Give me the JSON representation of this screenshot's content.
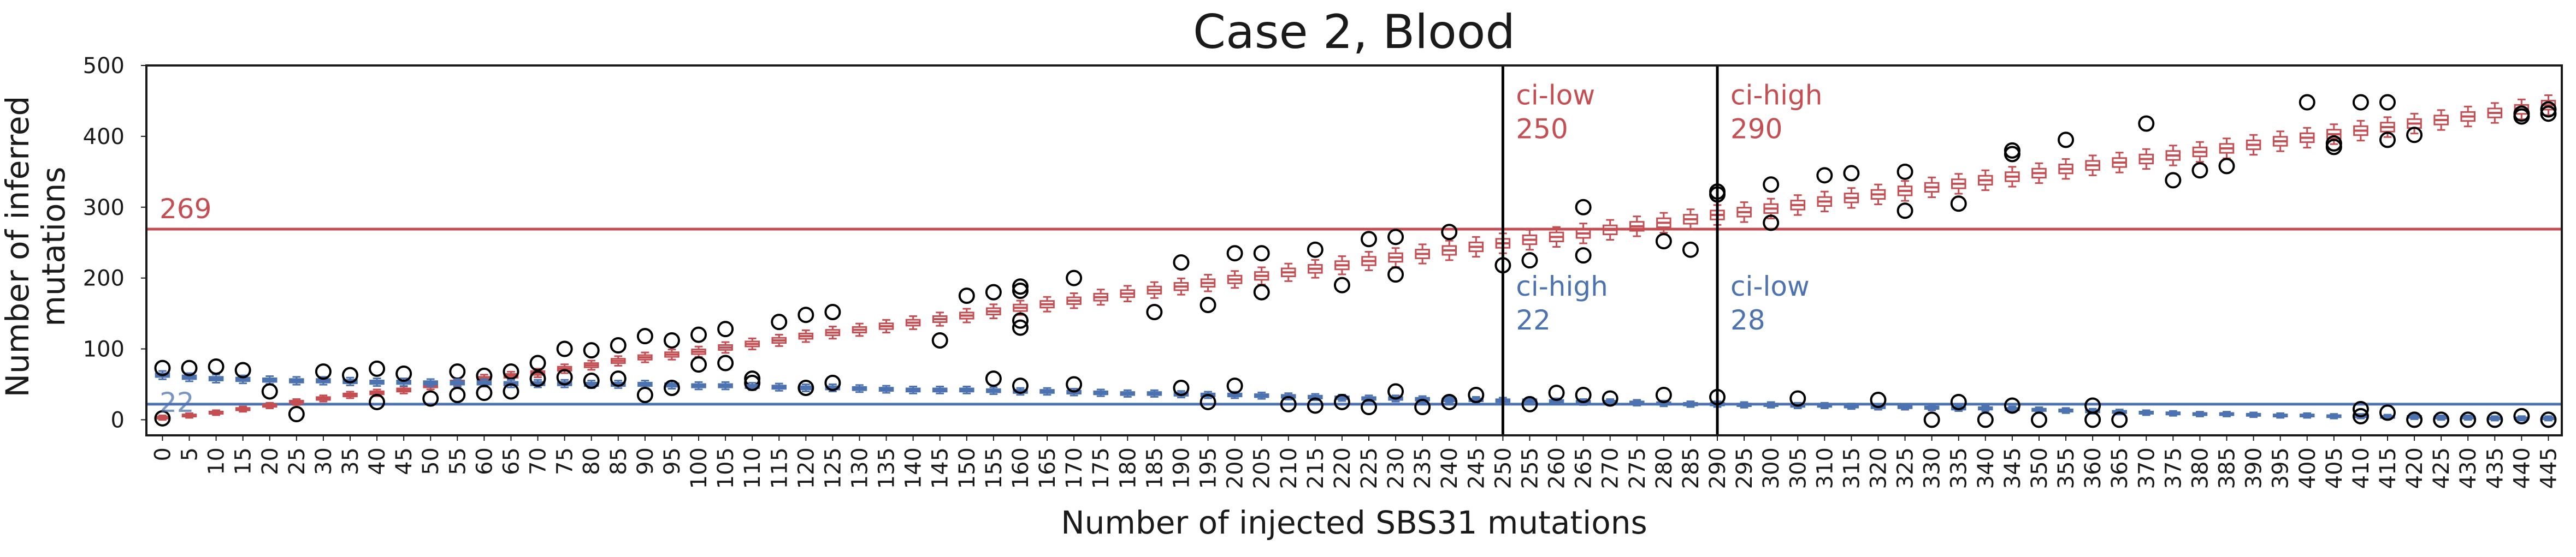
{
  "chart_data": {
    "type": "box",
    "title": "Case 2, Blood",
    "xlabel": "Number of injected SBS31 mutations",
    "ylabel": "Number of inferred mutations",
    "ylim": [
      -22,
      500
    ],
    "yticks": [
      0,
      100,
      200,
      300,
      400,
      500
    ],
    "x": [
      0,
      5,
      10,
      15,
      20,
      25,
      30,
      35,
      40,
      45,
      50,
      55,
      60,
      65,
      70,
      75,
      80,
      85,
      90,
      95,
      100,
      105,
      110,
      115,
      120,
      125,
      130,
      135,
      140,
      145,
      150,
      155,
      160,
      165,
      170,
      175,
      180,
      185,
      190,
      195,
      200,
      205,
      210,
      215,
      220,
      225,
      230,
      235,
      240,
      245,
      250,
      255,
      260,
      265,
      270,
      275,
      280,
      285,
      290,
      295,
      300,
      305,
      310,
      315,
      320,
      325,
      330,
      335,
      340,
      345,
      350,
      355,
      360,
      365,
      370,
      375,
      380,
      385,
      390,
      395,
      400,
      405,
      410,
      415,
      420,
      425,
      430,
      435,
      440,
      445
    ],
    "xlim": [
      -3,
      447.5
    ],
    "grid": false,
    "series": [
      {
        "color": "#c44e52",
        "medians": [
          3,
          6,
          10,
          15,
          20,
          25,
          30,
          35,
          38,
          42,
          48,
          53,
          58,
          62,
          66,
          72,
          77,
          83,
          88,
          92,
          96,
          102,
          107,
          112,
          118,
          123,
          127,
          132,
          137,
          142,
          147,
          153,
          158,
          163,
          168,
          173,
          178,
          183,
          188,
          193,
          198,
          203,
          208,
          213,
          218,
          224,
          229,
          234,
          239,
          244,
          249,
          254,
          258,
          263,
          268,
          273,
          278,
          283,
          289,
          293,
          298,
          303,
          308,
          313,
          318,
          323,
          328,
          333,
          338,
          343,
          348,
          354,
          359,
          363,
          368,
          373,
          378,
          383,
          388,
          393,
          398,
          403,
          408,
          413,
          418,
          423,
          428,
          433,
          438,
          444
        ],
        "outliers": [
          [
            0,
            2
          ],
          [
            40,
            25
          ],
          [
            55,
            68
          ],
          [
            60,
            62
          ],
          [
            65,
            68
          ],
          [
            70,
            80
          ],
          [
            75,
            100
          ],
          [
            80,
            98
          ],
          [
            85,
            105
          ],
          [
            90,
            118
          ],
          [
            95,
            112
          ],
          [
            100,
            120
          ],
          [
            105,
            128
          ],
          [
            110,
            58
          ],
          [
            115,
            138
          ],
          [
            120,
            148
          ],
          [
            125,
            152
          ],
          [
            145,
            112
          ],
          [
            150,
            175
          ],
          [
            155,
            180
          ],
          [
            160,
            188
          ],
          [
            160,
            182
          ],
          [
            160,
            140
          ],
          [
            160,
            130
          ],
          [
            170,
            200
          ],
          [
            185,
            152
          ],
          [
            190,
            222
          ],
          [
            195,
            162
          ],
          [
            200,
            235
          ],
          [
            205,
            235
          ],
          [
            205,
            180
          ],
          [
            215,
            240
          ],
          [
            220,
            190
          ],
          [
            225,
            255
          ],
          [
            230,
            258
          ],
          [
            230,
            205
          ],
          [
            240,
            265
          ],
          [
            250,
            218
          ],
          [
            255,
            225
          ],
          [
            265,
            300
          ],
          [
            265,
            232
          ],
          [
            280,
            252
          ],
          [
            285,
            240
          ],
          [
            290,
            318
          ],
          [
            290,
            322
          ],
          [
            300,
            332
          ],
          [
            300,
            278
          ],
          [
            310,
            345
          ],
          [
            315,
            348
          ],
          [
            325,
            350
          ],
          [
            325,
            295
          ],
          [
            335,
            305
          ],
          [
            345,
            380
          ],
          [
            345,
            375
          ],
          [
            355,
            395
          ],
          [
            370,
            418
          ],
          [
            375,
            338
          ],
          [
            380,
            352
          ],
          [
            385,
            358
          ],
          [
            400,
            448
          ],
          [
            405,
            390
          ],
          [
            405,
            385
          ],
          [
            410,
            448
          ],
          [
            415,
            448
          ],
          [
            415,
            395
          ],
          [
            420,
            402
          ],
          [
            440,
            432
          ],
          [
            440,
            428
          ],
          [
            445,
            438
          ],
          [
            445,
            432
          ]
        ]
      },
      {
        "color": "#4c72b0",
        "medians": [
          63,
          60,
          58,
          57,
          56,
          55,
          55,
          54,
          53,
          53,
          52,
          52,
          52,
          51,
          51,
          51,
          50,
          50,
          50,
          49,
          48,
          48,
          47,
          46,
          45,
          45,
          44,
          43,
          42,
          42,
          42,
          41,
          40,
          40,
          39,
          38,
          37,
          37,
          36,
          35,
          35,
          34,
          33,
          32,
          31,
          30,
          30,
          29,
          28,
          28,
          27,
          27,
          26,
          25,
          25,
          24,
          23,
          22,
          22,
          21,
          21,
          20,
          20,
          19,
          18,
          18,
          17,
          16,
          16,
          15,
          14,
          13,
          12,
          11,
          10,
          9,
          8,
          8,
          7,
          6,
          6,
          5,
          5,
          4,
          4,
          3,
          3,
          2,
          2,
          2
        ],
        "outliers": [
          [
            0,
            73
          ],
          [
            5,
            73
          ],
          [
            10,
            75
          ],
          [
            15,
            70
          ],
          [
            20,
            40
          ],
          [
            25,
            8
          ],
          [
            30,
            68
          ],
          [
            35,
            63
          ],
          [
            40,
            72
          ],
          [
            45,
            65
          ],
          [
            50,
            30
          ],
          [
            55,
            35
          ],
          [
            60,
            38
          ],
          [
            65,
            40
          ],
          [
            70,
            58
          ],
          [
            75,
            60
          ],
          [
            80,
            55
          ],
          [
            85,
            58
          ],
          [
            90,
            35
          ],
          [
            95,
            45
          ],
          [
            100,
            78
          ],
          [
            105,
            80
          ],
          [
            110,
            52
          ],
          [
            120,
            45
          ],
          [
            125,
            52
          ],
          [
            155,
            58
          ],
          [
            160,
            48
          ],
          [
            170,
            50
          ],
          [
            190,
            45
          ],
          [
            195,
            25
          ],
          [
            200,
            48
          ],
          [
            210,
            22
          ],
          [
            215,
            20
          ],
          [
            220,
            25
          ],
          [
            225,
            18
          ],
          [
            230,
            40
          ],
          [
            235,
            18
          ],
          [
            240,
            25
          ],
          [
            245,
            35
          ],
          [
            255,
            22
          ],
          [
            260,
            38
          ],
          [
            265,
            35
          ],
          [
            270,
            30
          ],
          [
            280,
            35
          ],
          [
            290,
            32
          ],
          [
            305,
            30
          ],
          [
            320,
            28
          ],
          [
            330,
            0
          ],
          [
            335,
            25
          ],
          [
            340,
            0
          ],
          [
            345,
            20
          ],
          [
            350,
            0
          ],
          [
            360,
            0
          ],
          [
            360,
            20
          ],
          [
            365,
            0
          ],
          [
            410,
            15
          ],
          [
            410,
            5
          ],
          [
            415,
            10
          ],
          [
            420,
            0
          ],
          [
            425,
            0
          ],
          [
            430,
            0
          ],
          [
            435,
            0
          ],
          [
            440,
            5
          ],
          [
            445,
            0
          ]
        ]
      }
    ],
    "hlines": [
      {
        "y": 269,
        "label": "269",
        "color": "#c44e52"
      },
      {
        "y": 22,
        "label": "22",
        "color": "#4c72b0"
      }
    ],
    "vlines": [
      {
        "x": 250,
        "color": "#000000",
        "labels": [
          {
            "lines": [
              "ci-low",
              "250"
            ],
            "y": 445,
            "color": "#c44e52"
          },
          {
            "lines": [
              "ci-high",
              "22"
            ],
            "y": 175,
            "color": "#4c72b0"
          }
        ]
      },
      {
        "x": 290,
        "color": "#000000",
        "labels": [
          {
            "lines": [
              "ci-high",
              "290"
            ],
            "y": 445,
            "color": "#c44e52"
          },
          {
            "lines": [
              "ci-low",
              "28"
            ],
            "y": 175,
            "color": "#4c72b0"
          }
        ]
      }
    ]
  }
}
